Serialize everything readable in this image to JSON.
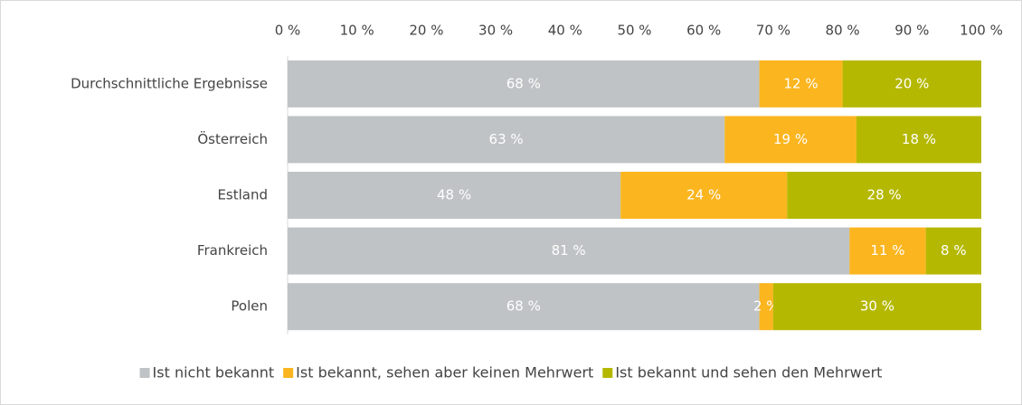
{
  "chart_data": {
    "type": "bar",
    "orientation": "horizontal",
    "stacked": true,
    "categories": [
      "Durchschnittliche Ergebnisse",
      "Österreich",
      "Estland",
      "Frankreich",
      "Polen"
    ],
    "series": [
      {
        "name": "Ist nicht bekannt",
        "color": "#bfc3c5",
        "values": [
          68,
          63,
          48,
          81,
          68
        ],
        "value_labels": [
          "68 %",
          "63 %",
          "48 %",
          "81 %",
          "68 %"
        ]
      },
      {
        "name": "Ist bekannt, sehen aber keinen Mehrwert",
        "color": "#fbb51f",
        "values": [
          12,
          19,
          24,
          11,
          2
        ],
        "value_labels": [
          "12 %",
          "19 %",
          "24 %",
          "11 %",
          "2 %"
        ]
      },
      {
        "name": "Ist bekannt und sehen den Mehrwert",
        "color": "#b5b800",
        "values": [
          20,
          18,
          28,
          8,
          30
        ],
        "value_labels": [
          "20 %",
          "18 %",
          "28 %",
          "8 %",
          "30 %"
        ]
      }
    ],
    "xlim": [
      0,
      100
    ],
    "xticks": [
      {
        "value": 0,
        "label": "0 %"
      },
      {
        "value": 10,
        "label": "10 %"
      },
      {
        "value": 20,
        "label": "20 %"
      },
      {
        "value": 30,
        "label": "30 %"
      },
      {
        "value": 40,
        "label": "40 %"
      },
      {
        "value": 50,
        "label": "50 %"
      },
      {
        "value": 60,
        "label": "60 %"
      },
      {
        "value": 70,
        "label": "70 %"
      },
      {
        "value": 80,
        "label": "80 %"
      },
      {
        "value": 90,
        "label": "90 %"
      },
      {
        "value": 100,
        "label": "100 %"
      }
    ],
    "legend": "bottom",
    "grid": false
  }
}
